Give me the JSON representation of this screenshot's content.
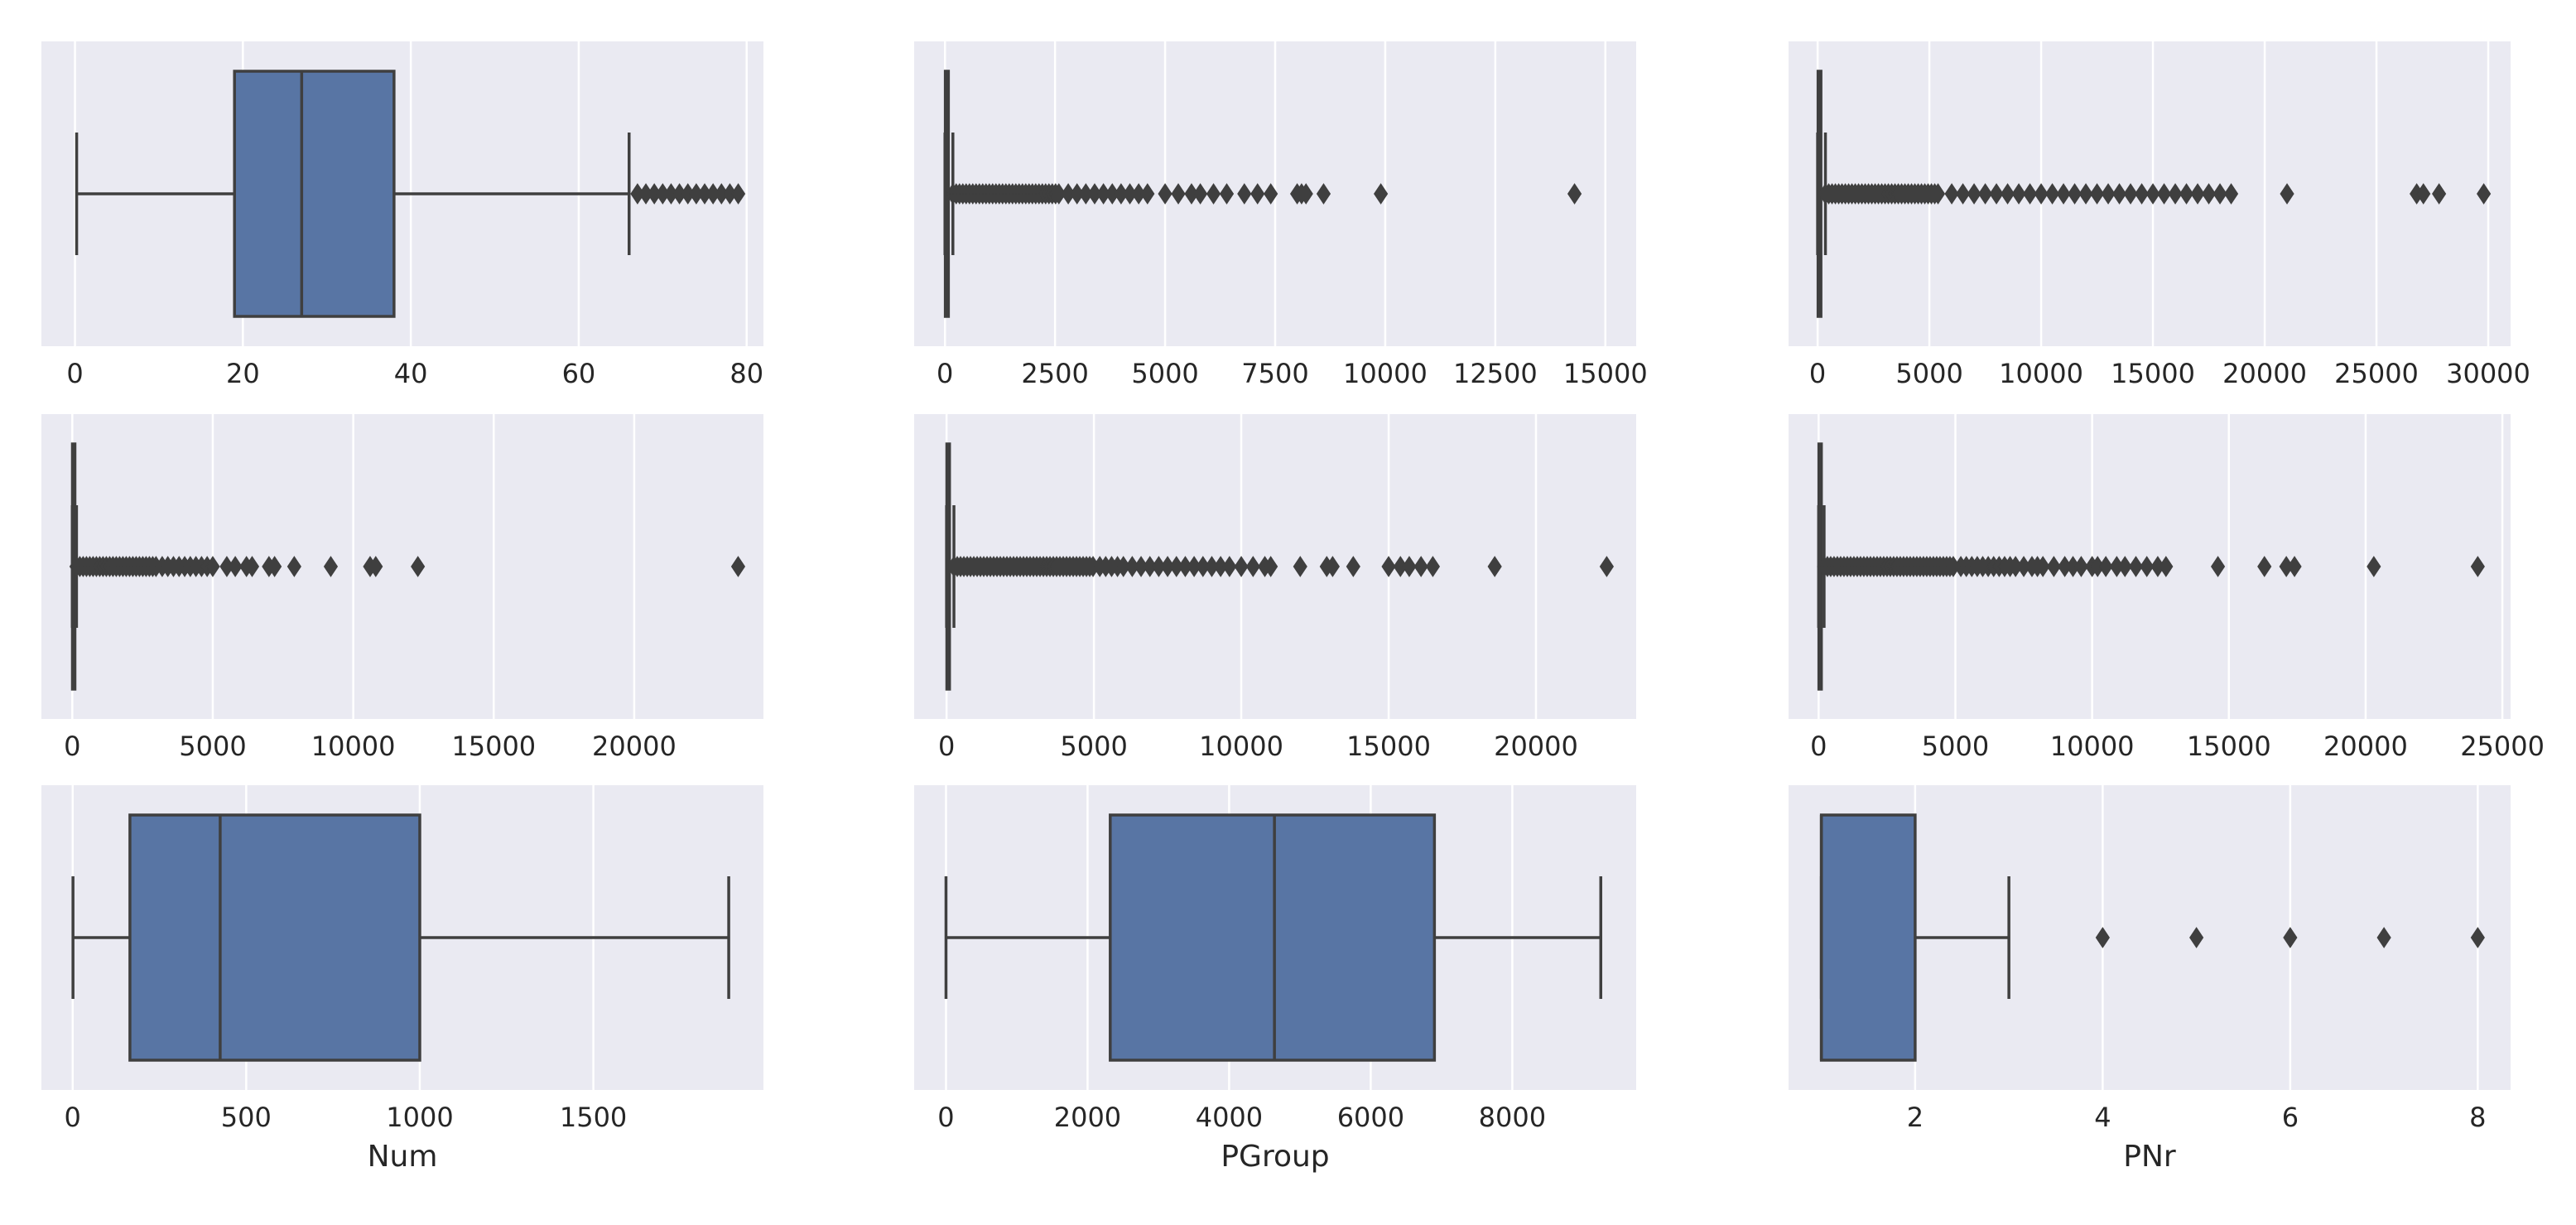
{
  "colors": {
    "axes_bg": "#eaeaf2",
    "grid": "#ffffff",
    "box_fill": "#5875a4",
    "line": "#3f3f3f"
  },
  "chart_data": [
    {
      "type": "boxplot",
      "orient": "horizontal",
      "xlabel": "",
      "xlim": [
        -4,
        82
      ],
      "ticks": [
        0,
        20,
        40,
        60,
        80
      ],
      "tick_labels": [
        "0",
        "20",
        "40",
        "60",
        "80"
      ],
      "box": {
        "whisker_low": 0.2,
        "q1": 19,
        "median": 27,
        "q3": 38,
        "whisker_high": 66
      },
      "outliers": [
        67,
        68,
        69,
        70,
        71,
        72,
        73,
        74,
        75,
        76,
        77,
        78,
        79
      ]
    },
    {
      "type": "boxplot",
      "orient": "horizontal",
      "xlabel": "",
      "xlim": [
        -700,
        15700
      ],
      "ticks": [
        0,
        2500,
        5000,
        7500,
        10000,
        12500,
        15000
      ],
      "tick_labels": [
        "0",
        "2500",
        "5000",
        "7500",
        "10000",
        "12500",
        "15000"
      ],
      "box": {
        "whisker_low": 0,
        "q1": 8,
        "median": 31,
        "q3": 78,
        "whisker_high": 180
      },
      "outliers_dense_range": [
        180,
        2600
      ],
      "outliers": [
        2800,
        3000,
        3200,
        3400,
        3600,
        3800,
        4000,
        4200,
        4400,
        4600,
        5000,
        5300,
        5600,
        5800,
        6100,
        6400,
        6800,
        7100,
        7400,
        8000,
        8100,
        8200,
        8600,
        9900,
        14300
      ]
    },
    {
      "type": "boxplot",
      "orient": "horizontal",
      "xlabel": "",
      "xlim": [
        -1300,
        31000
      ],
      "ticks": [
        0,
        5000,
        10000,
        15000,
        20000,
        25000,
        30000
      ],
      "tick_labels": [
        "0",
        "5000",
        "10000",
        "15000",
        "20000",
        "25000",
        "30000"
      ],
      "box": {
        "whisker_low": 0,
        "q1": 20,
        "median": 60,
        "q3": 150,
        "whisker_high": 350
      },
      "outliers_dense_range": [
        350,
        5500
      ],
      "outliers": [
        6000,
        6500,
        7000,
        7500,
        8000,
        8500,
        9000,
        9500,
        10000,
        10500,
        11000,
        11500,
        12000,
        12500,
        13000,
        13500,
        14000,
        14500,
        15000,
        15500,
        16000,
        16500,
        17000,
        17500,
        18000,
        18500,
        21000,
        26800,
        27100,
        27800,
        29800
      ]
    },
    {
      "type": "boxplot",
      "orient": "horizontal",
      "xlabel": "",
      "xlim": [
        -1100,
        24600
      ],
      "ticks": [
        0,
        5000,
        10000,
        15000,
        20000
      ],
      "tick_labels": [
        "0",
        "5000",
        "10000",
        "15000",
        "20000"
      ],
      "box": {
        "whisker_low": 0,
        "q1": 5,
        "median": 20,
        "q3": 60,
        "whisker_high": 150
      },
      "outliers_dense_range": [
        150,
        3000
      ],
      "outliers": [
        3200,
        3400,
        3600,
        3800,
        4000,
        4200,
        4400,
        4600,
        4800,
        5000,
        5500,
        5800,
        6200,
        6400,
        7000,
        7200,
        7900,
        9200,
        10600,
        10800,
        12300,
        23700
      ]
    },
    {
      "type": "boxplot",
      "orient": "horizontal",
      "xlabel": "",
      "xlim": [
        -1100,
        23400
      ],
      "ticks": [
        0,
        5000,
        10000,
        15000,
        20000
      ],
      "tick_labels": [
        "0",
        "5000",
        "10000",
        "15000",
        "20000"
      ],
      "box": {
        "whisker_low": 0,
        "q1": 10,
        "median": 40,
        "q3": 100,
        "whisker_high": 250
      },
      "outliers_dense_range": [
        250,
        5000
      ],
      "outliers": [
        5200,
        5400,
        5600,
        5800,
        6000,
        6300,
        6600,
        6900,
        7200,
        7500,
        7800,
        8100,
        8400,
        8700,
        9000,
        9300,
        9600,
        10000,
        10400,
        10800,
        11000,
        12000,
        12900,
        13100,
        13800,
        15000,
        15400,
        15700,
        16100,
        16500,
        18600,
        22400
      ]
    },
    {
      "type": "boxplot",
      "orient": "horizontal",
      "xlabel": "",
      "xlim": [
        -1100,
        25300
      ],
      "ticks": [
        0,
        5000,
        10000,
        15000,
        20000,
        25000
      ],
      "tick_labels": [
        "0",
        "5000",
        "10000",
        "15000",
        "20000",
        "25000"
      ],
      "box": {
        "whisker_low": 0,
        "q1": 10,
        "median": 30,
        "q3": 80,
        "whisker_high": 200
      },
      "outliers_dense_range": [
        200,
        5000
      ],
      "outliers": [
        5200,
        5400,
        5600,
        5800,
        6000,
        6200,
        6400,
        6600,
        6800,
        7000,
        7200,
        7500,
        7800,
        8000,
        8200,
        8600,
        9000,
        9300,
        9600,
        10000,
        10200,
        10500,
        10900,
        11200,
        11600,
        12000,
        12400,
        12700,
        14600,
        16300,
        17100,
        17400,
        20300,
        24100
      ]
    },
    {
      "type": "boxplot",
      "orient": "horizontal",
      "xlabel": "Num",
      "xlim": [
        -90,
        1990
      ],
      "ticks": [
        0,
        500,
        1000,
        1500
      ],
      "tick_labels": [
        "0",
        "500",
        "1000",
        "1500"
      ],
      "box": {
        "whisker_low": 1,
        "q1": 165,
        "median": 425,
        "q3": 1000,
        "whisker_high": 1890
      },
      "outliers": []
    },
    {
      "type": "boxplot",
      "orient": "horizontal",
      "xlabel": "PGroup",
      "xlim": [
        -450,
        9750
      ],
      "ticks": [
        0,
        2000,
        4000,
        6000,
        8000
      ],
      "tick_labels": [
        "0",
        "2000",
        "4000",
        "6000",
        "8000"
      ],
      "box": {
        "whisker_low": 0,
        "q1": 2320,
        "median": 4640,
        "q3": 6900,
        "whisker_high": 9250
      },
      "outliers": []
    },
    {
      "type": "boxplot",
      "orient": "horizontal",
      "xlabel": "PNr",
      "xlim": [
        0.65,
        8.35
      ],
      "ticks": [
        2,
        4,
        6,
        8
      ],
      "tick_labels": [
        "2",
        "4",
        "6",
        "8"
      ],
      "box": {
        "whisker_low": 1,
        "q1": 1,
        "median": 1,
        "q3": 2,
        "whisker_high": 3
      },
      "outliers": [
        4,
        5,
        6,
        7,
        8
      ]
    }
  ]
}
